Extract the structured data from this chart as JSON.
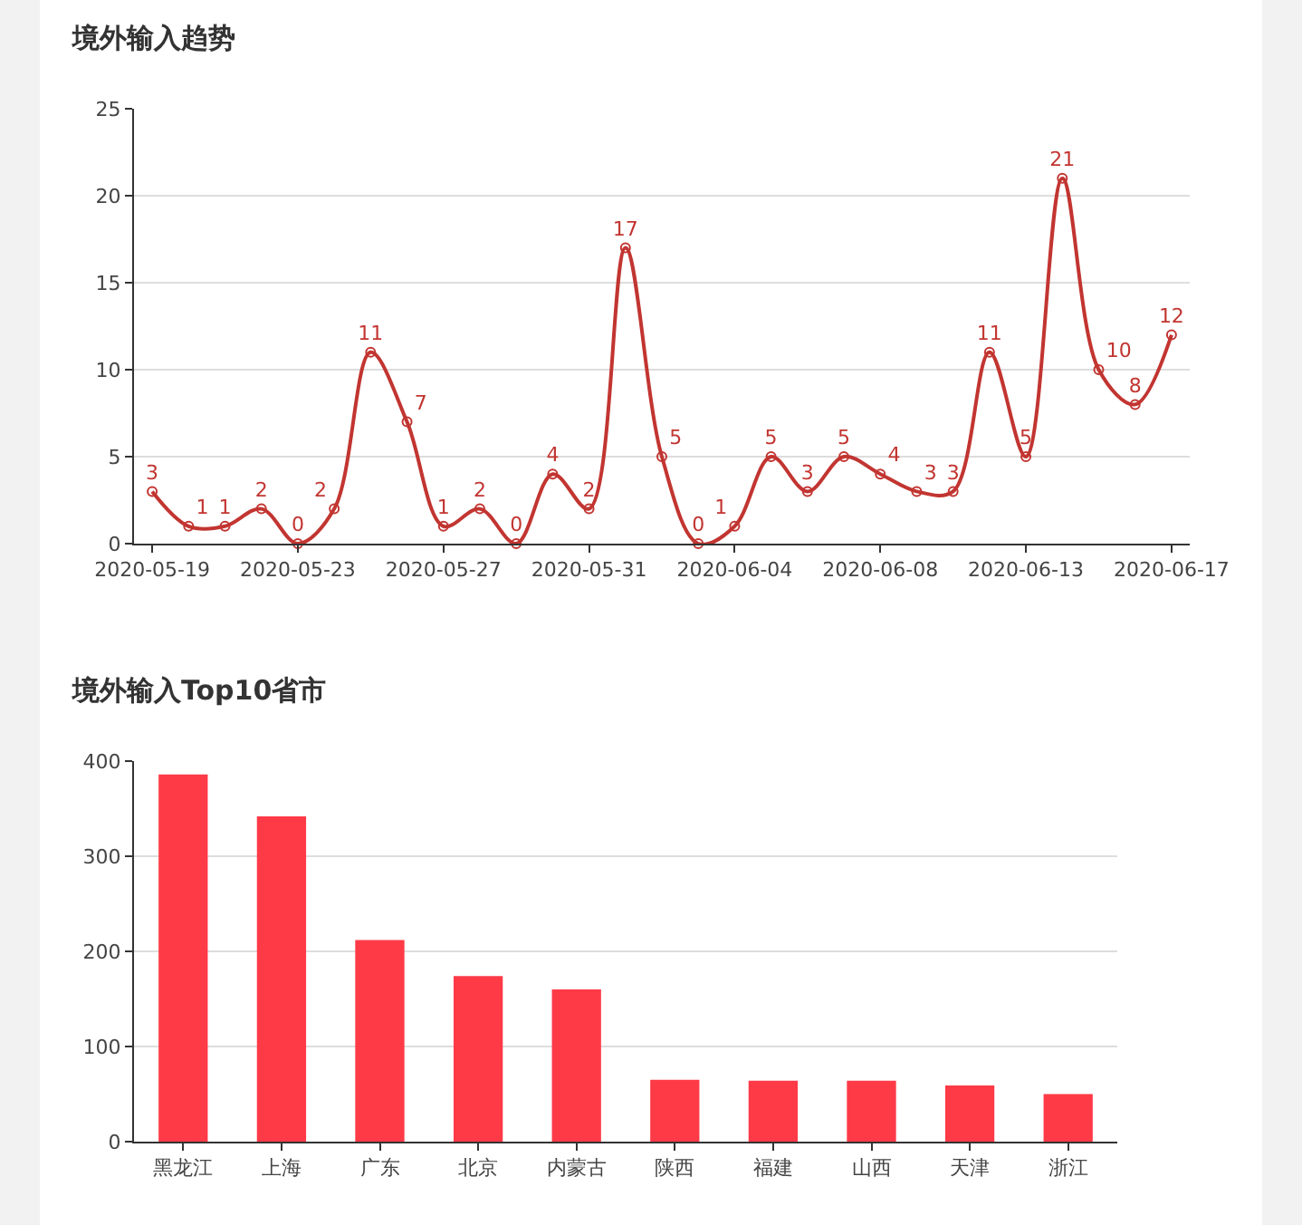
{
  "chart_data": [
    {
      "type": "line",
      "title": "境外输入趋势",
      "categories": [
        "2020-05-19",
        null,
        null,
        null,
        "2020-05-23",
        null,
        null,
        null,
        "2020-05-27",
        null,
        null,
        null,
        "2020-05-31",
        null,
        null,
        null,
        "2020-06-04",
        null,
        null,
        null,
        "2020-06-08",
        null,
        null,
        null,
        "2020-06-13",
        null,
        null,
        null,
        "2020-06-17"
      ],
      "series": [
        {
          "color": "#c23531",
          "values": [
            3,
            1,
            1,
            2,
            0,
            2,
            11,
            7,
            1,
            2,
            0,
            4,
            2,
            17,
            5,
            0,
            1,
            5,
            3,
            5,
            4,
            3,
            3,
            11,
            5,
            21,
            10,
            8,
            12
          ]
        }
      ],
      "ylim": [
        0,
        25
      ],
      "yticks": [
        0,
        5,
        10,
        15,
        20,
        25
      ],
      "grid": "y",
      "marker": "circle",
      "line_style": "solid",
      "data_labels": true
    },
    {
      "type": "bar",
      "title": "境外输入Top10省市",
      "categories": [
        "黑龙江",
        "上海",
        "广东",
        "北京",
        "内蒙古",
        "陕西",
        "福建",
        "山西",
        "天津",
        "浙江"
      ],
      "series": [
        {
          "color": "#ff3a47",
          "values": [
            386,
            342,
            212,
            174,
            160,
            65,
            64,
            64,
            59,
            50
          ]
        }
      ],
      "ylim": [
        0,
        400
      ],
      "yticks": [
        0,
        100,
        200,
        300,
        400
      ],
      "grid": "y"
    }
  ]
}
